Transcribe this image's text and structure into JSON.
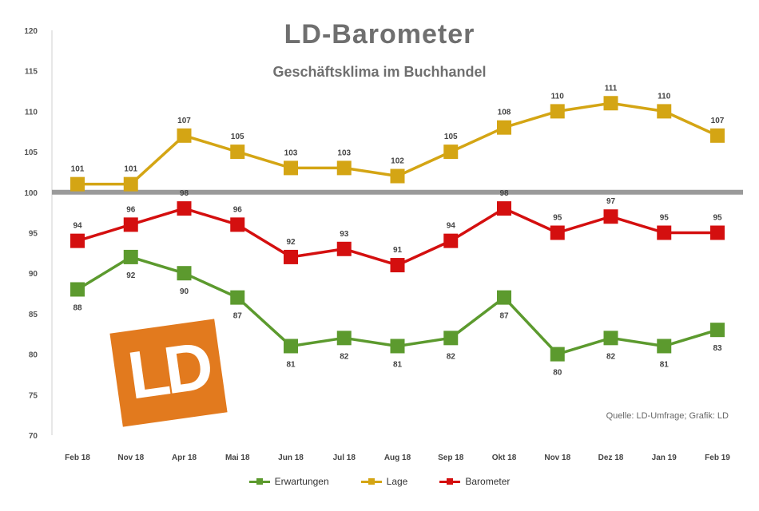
{
  "chart_data": {
    "type": "line",
    "title": "LD-Barometer",
    "subtitle": "Geschäftsklima im Buchhandel",
    "source": "Quelle: LD-Umfrage; Grafik: LD",
    "categories": [
      "Feb 18",
      "Nov 18",
      "Apr 18",
      "Mai 18",
      "Jun 18",
      "Jul 18",
      "Aug 18",
      "Sep 18",
      "Okt 18",
      "Nov 18",
      "Dez 18",
      "Jan 19",
      "Feb 19"
    ],
    "ylim": [
      70,
      120
    ],
    "yticks": [
      "120",
      "115",
      "110",
      "105",
      "100",
      "95",
      "90",
      "85",
      "80",
      "75",
      "70"
    ],
    "baseline": 100,
    "grid": false,
    "legend_position": "bottom",
    "series": [
      {
        "name": "Erwartungen",
        "color": "#5c9a2e",
        "values": [
          88,
          92,
          90,
          87,
          81,
          82,
          81,
          82,
          87,
          80,
          82,
          81,
          83
        ]
      },
      {
        "name": "Lage",
        "color": "#d4a514",
        "values": [
          101,
          101,
          107,
          105,
          103,
          103,
          102,
          105,
          108,
          110,
          111,
          110,
          107
        ]
      },
      {
        "name": "Barometer",
        "color": "#d40f0f",
        "values": [
          94,
          96,
          98,
          96,
          92,
          93,
          91,
          94,
          98,
          95,
          97,
          95,
          95
        ]
      }
    ]
  },
  "logo": {
    "text": "LD",
    "color": "#e27a1e"
  }
}
